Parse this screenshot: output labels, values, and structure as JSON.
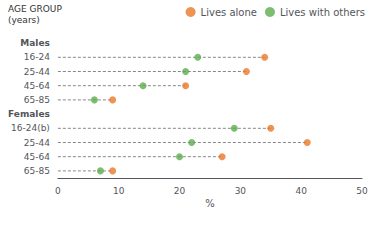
{
  "chart_data": {
    "type": "dot",
    "y_title": "AGE GROUP\n(years)",
    "xlabel": "%",
    "xlim": [
      0,
      50
    ],
    "xticks": [
      0,
      10,
      20,
      30,
      40,
      50
    ],
    "groups": [
      {
        "name": "Males",
        "categories": [
          "16-24",
          "25-44",
          "45-64",
          "65-85"
        ]
      },
      {
        "name": "Females",
        "categories": [
          "16-24(b)",
          "25-44",
          "45-64",
          "65-85"
        ]
      }
    ],
    "series": [
      {
        "name": "Lives alone",
        "color": "#E8792A",
        "values": [
          34,
          31,
          21,
          9,
          35,
          41,
          27,
          9
        ]
      },
      {
        "name": "Lives with others",
        "color": "#5BAD4E",
        "values": [
          23,
          21,
          14,
          6,
          29,
          22,
          20,
          7
        ]
      }
    ],
    "marker": "circle",
    "line_style": "dashed",
    "legend": "top"
  }
}
